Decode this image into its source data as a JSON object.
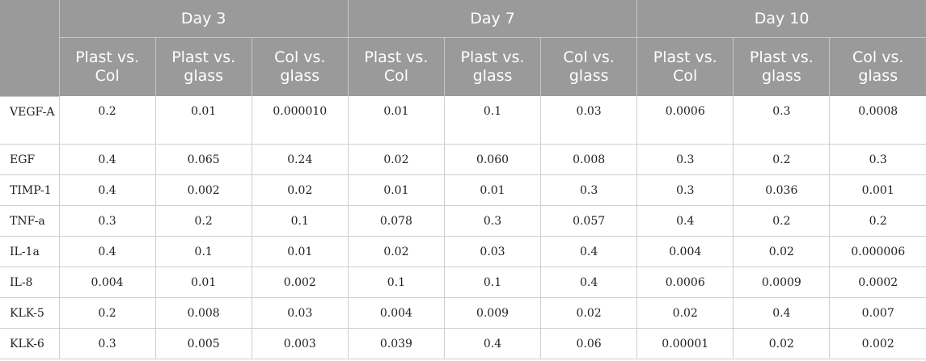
{
  "header": {
    "groups": [
      "Day 3",
      "Day 7",
      "Day 10"
    ],
    "subheaders": [
      "Plast vs. Col",
      "Plast vs. glass",
      "Col vs. glass"
    ]
  },
  "rows": [
    {
      "label": "VEGF-A",
      "values": [
        "0.2",
        "0.01",
        "0.000010",
        "0.01",
        "0.1",
        "0.03",
        "0.0006",
        "0.3",
        "0.0008"
      ]
    },
    {
      "label": "EGF",
      "values": [
        "0.4",
        "0.065",
        "0.24",
        "0.02",
        "0.060",
        "0.008",
        "0.3",
        "0.2",
        "0.3"
      ]
    },
    {
      "label": "TIMP-1",
      "values": [
        "0.4",
        "0.002",
        "0.02",
        "0.01",
        "0.01",
        "0.3",
        "0.3",
        "0.036",
        "0.001"
      ]
    },
    {
      "label": "TNF-a",
      "values": [
        "0.3",
        "0.2",
        "0.1",
        "0.078",
        "0.3",
        "0.057",
        "0.4",
        "0.2",
        "0.2"
      ]
    },
    {
      "label": "IL-1a",
      "values": [
        "0.4",
        "0.1",
        "0.01",
        "0.02",
        "0.03",
        "0.4",
        "0.004",
        "0.02",
        "0.000006"
      ]
    },
    {
      "label": "IL-8",
      "values": [
        "0.004",
        "0.01",
        "0.002",
        "0.1",
        "0.1",
        "0.4",
        "0.0006",
        "0.0009",
        "0.0002"
      ]
    },
    {
      "label": "KLK-5",
      "values": [
        "0.2",
        "0.008",
        "0.03",
        "0.004",
        "0.009",
        "0.02",
        "0.02",
        "0.4",
        "0.007"
      ]
    },
    {
      "label": "KLK-6",
      "values": [
        "0.3",
        "0.005",
        "0.003",
        "0.039",
        "0.4",
        "0.06",
        "0.00001",
        "0.02",
        "0.002"
      ]
    }
  ]
}
